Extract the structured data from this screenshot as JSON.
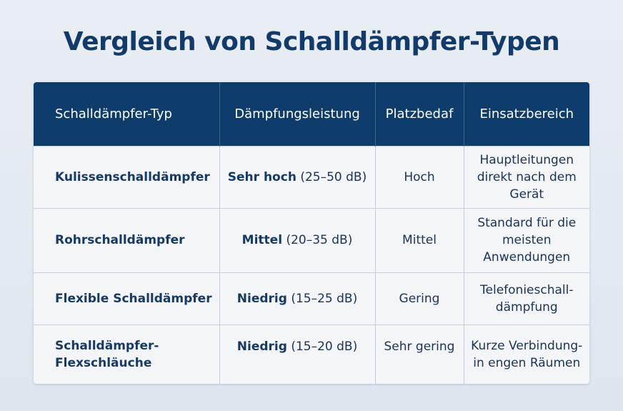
{
  "title": "Vergleich von Schalldämpfer-Typen",
  "table": {
    "headers": [
      "Schalldämpfer-Typ",
      "Dämpfungsleistung",
      "Platzbedaf",
      "Einsatzbereich"
    ],
    "rows": [
      {
        "type": "Kulissenschalldämpfer",
        "level": "Sehr hoch",
        "range": "(25–50 dB)",
        "space": "Hoch",
        "usage": "Hauptleitungen direkt nach dem Gerät"
      },
      {
        "type": "Rohrschalldämpfer",
        "level": "Mittel",
        "range": "(20–35 dB)",
        "space": "Mittel",
        "usage": "Standard für die meisten Anwendungen"
      },
      {
        "type": "Flexible Schalldämpfer",
        "level": "Niedrig",
        "range": "(15–25 dB)",
        "space": "Gering",
        "usage": "Telefonieschall-dämpfung"
      },
      {
        "type": "Schalldämpfer-Flexschläuche",
        "level": "Niedrig",
        "range": "(15–20 dB)",
        "space": "Sehr gering",
        "usage": "Kurze Verbindung-in engen Räumen"
      }
    ]
  }
}
